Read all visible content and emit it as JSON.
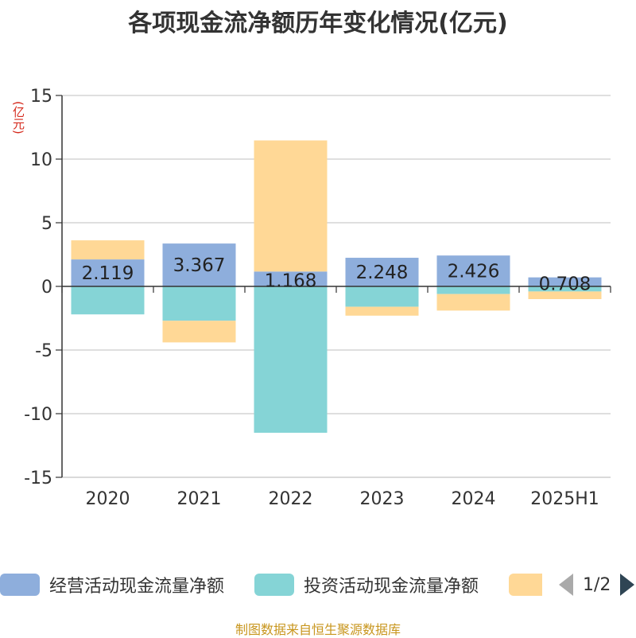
{
  "title": "各项现金流净额历年变化情况(亿元)",
  "unit_label": "(亿元)",
  "colors": {
    "operating": "#8eaedc",
    "investing": "#85d4d6",
    "financing": "#ffd896"
  },
  "legend": {
    "items": [
      {
        "label": "经营活动现金流量净额",
        "color": "#8eaedc"
      },
      {
        "label": "投资活动现金流量净额",
        "color": "#85d4d6"
      },
      {
        "label": "",
        "color": "#ffd896"
      }
    ],
    "page": "1/2"
  },
  "source": "制图数据来自恒生聚源数据库",
  "chart_data": {
    "type": "bar",
    "stacked": true,
    "categories": [
      "2020",
      "2021",
      "2022",
      "2023",
      "2024",
      "2025H1"
    ],
    "series": [
      {
        "name": "经营活动现金流量净额",
        "values": [
          2.119,
          3.367,
          1.168,
          2.248,
          2.426,
          0.708
        ],
        "labels": [
          "2.119",
          "3.367",
          "1.168",
          "2.248",
          "2.426",
          "0.708"
        ]
      },
      {
        "name": "投资活动现金流量净额",
        "values": [
          -2.2,
          -2.7,
          -11.5,
          -1.6,
          -0.6,
          -0.4
        ]
      },
      {
        "name": "",
        "values": [
          1.5,
          -1.7,
          10.3,
          -0.7,
          -1.3,
          -0.6
        ]
      }
    ],
    "yticks": [
      "15",
      "10",
      "5",
      "0",
      "-5",
      "-10",
      "-15"
    ],
    "ylim": [
      -15,
      15
    ],
    "grid": true
  }
}
